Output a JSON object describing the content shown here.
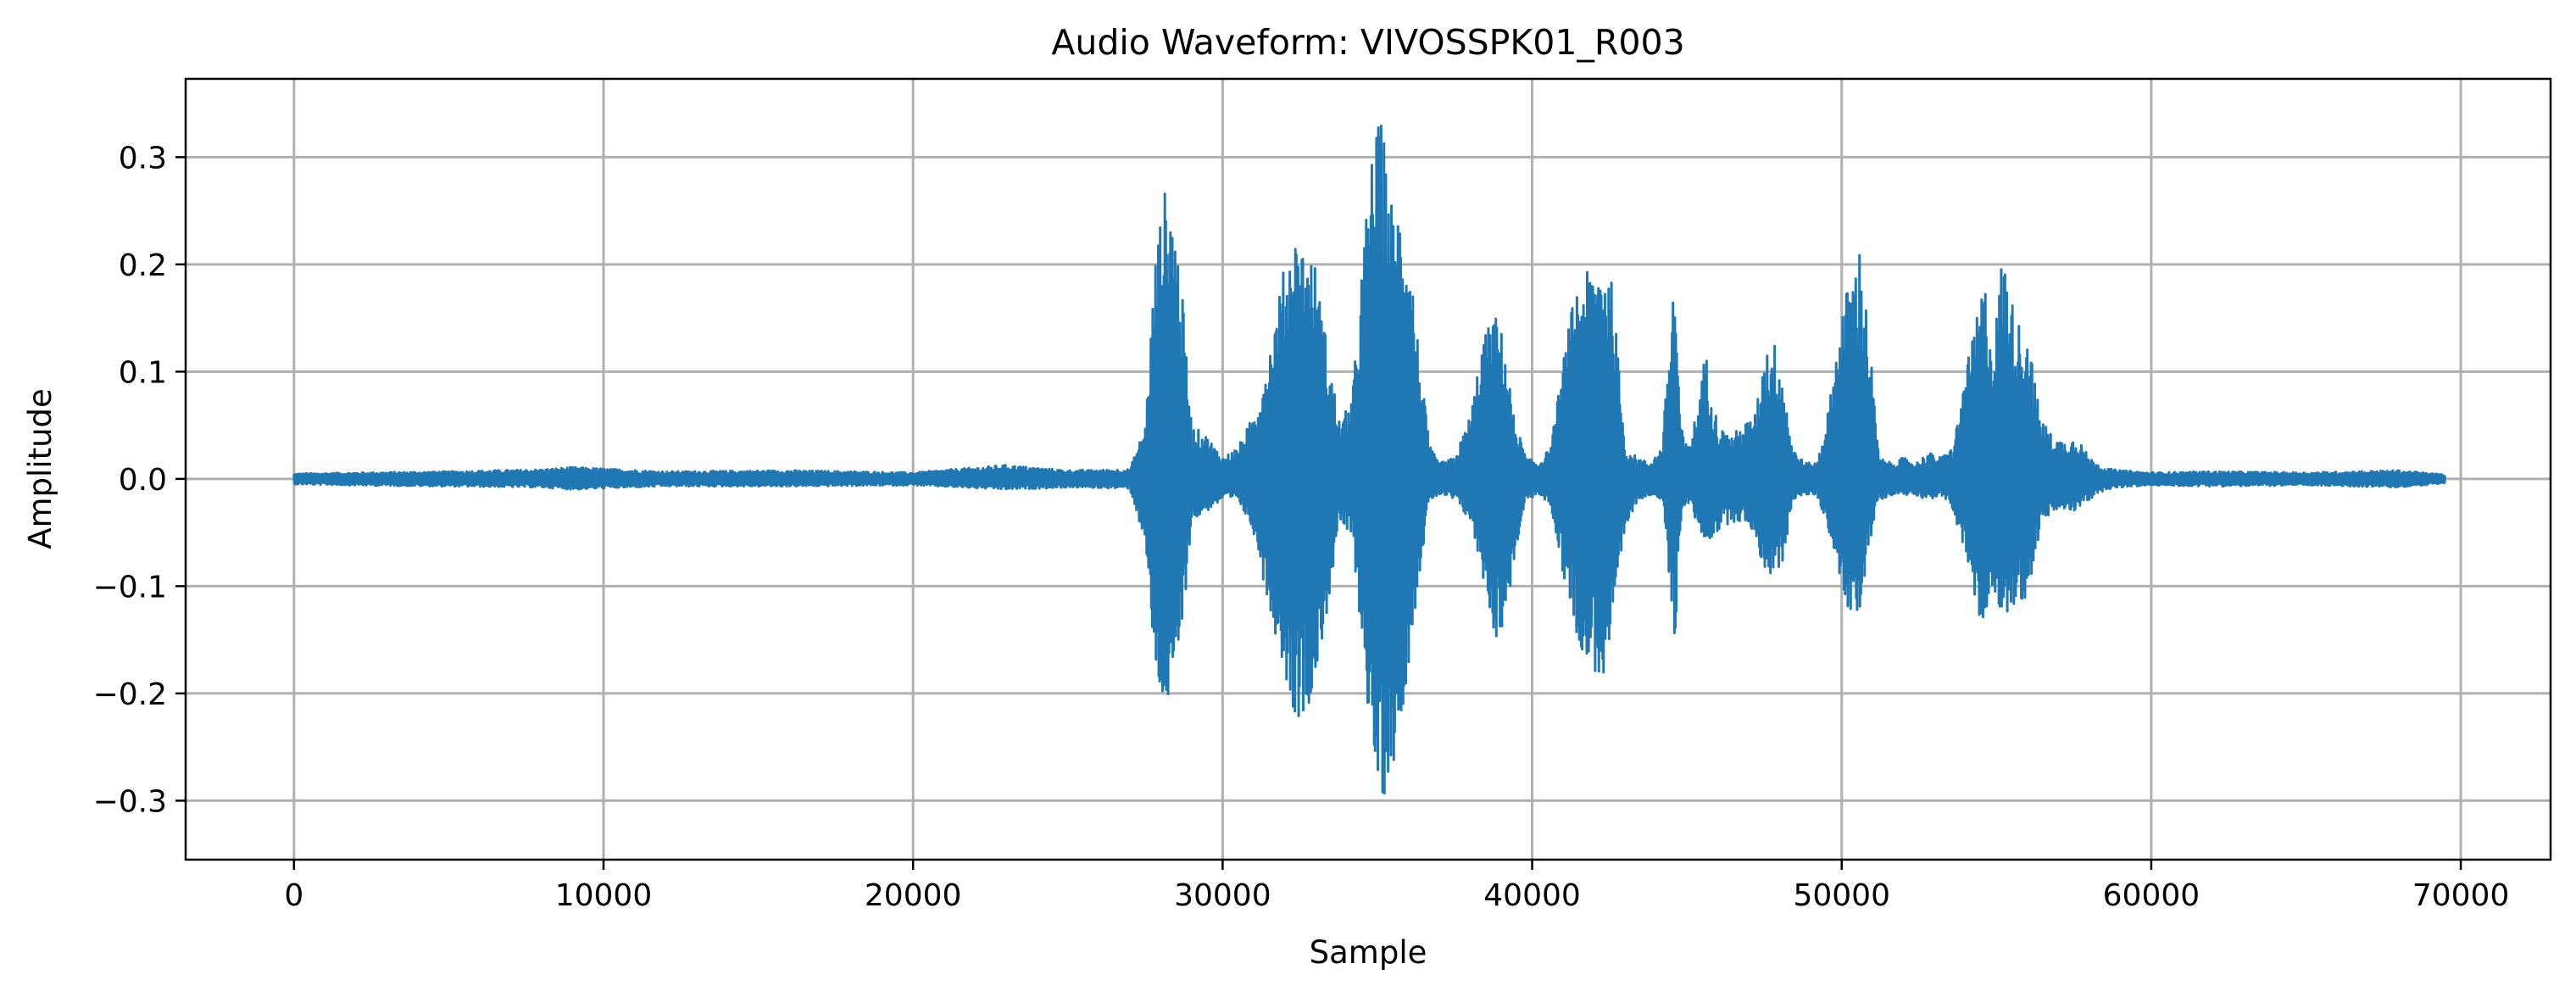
{
  "chart_data": {
    "type": "line",
    "title": "Audio Waveform: VIVOSSPK01_R003",
    "xlabel": "Sample",
    "ylabel": "Amplitude",
    "xlim": [
      -3500,
      72900
    ],
    "ylim": [
      -0.355,
      0.373
    ],
    "grid": true,
    "legend": "none",
    "line_color": "#1f77b4",
    "x_ticks": [
      {
        "value": 0,
        "label": "0"
      },
      {
        "value": 10000,
        "label": "10000"
      },
      {
        "value": 20000,
        "label": "20000"
      },
      {
        "value": 30000,
        "label": "30000"
      },
      {
        "value": 40000,
        "label": "40000"
      },
      {
        "value": 50000,
        "label": "50000"
      },
      {
        "value": 60000,
        "label": "60000"
      },
      {
        "value": 70000,
        "label": "70000"
      }
    ],
    "y_ticks": [
      {
        "value": 0.3,
        "label": "0.3"
      },
      {
        "value": 0.2,
        "label": "0.2"
      },
      {
        "value": 0.1,
        "label": "0.1"
      },
      {
        "value": 0.0,
        "label": "0.0"
      },
      {
        "value": -0.1,
        "label": "−0.1"
      },
      {
        "value": -0.2,
        "label": "−0.2"
      },
      {
        "value": -0.3,
        "label": "−0.3"
      }
    ],
    "series": [
      {
        "sample_count": 69500,
        "envelope": {
          "x": [
            0,
            2000,
            5000,
            8000,
            9000,
            12000,
            16000,
            20000,
            23000,
            25000,
            27000,
            27500,
            27800,
            28100,
            28400,
            28700,
            29000,
            29500,
            30000,
            30500,
            31000,
            31500,
            32000,
            32300,
            32600,
            33000,
            33400,
            33800,
            34200,
            34500,
            34800,
            35100,
            35300,
            35500,
            35800,
            36100,
            36400,
            36700,
            37000,
            37500,
            38000,
            38400,
            38800,
            39100,
            39400,
            39800,
            40200,
            40600,
            41000,
            41400,
            41700,
            42000,
            42300,
            42600,
            43000,
            43400,
            43800,
            44200,
            44600,
            44800,
            45000,
            45300,
            45600,
            46000,
            46400,
            46800,
            47200,
            47500,
            47800,
            48100,
            48400,
            48800,
            49200,
            49600,
            50000,
            50300,
            50600,
            50900,
            51200,
            51600,
            52000,
            52400,
            52800,
            53200,
            53600,
            54000,
            54300,
            54600,
            54900,
            55200,
            55600,
            56000,
            56400,
            56800,
            57200,
            57600,
            58000,
            58500,
            59000,
            60000,
            62000,
            65000,
            68000,
            69500
          ],
          "max": [
            0.005,
            0.006,
            0.007,
            0.009,
            0.011,
            0.007,
            0.008,
            0.006,
            0.013,
            0.008,
            0.009,
            0.05,
            0.2,
            0.27,
            0.26,
            0.17,
            0.05,
            0.04,
            0.02,
            0.03,
            0.06,
            0.12,
            0.2,
            0.23,
            0.22,
            0.2,
            0.12,
            0.05,
            0.08,
            0.2,
            0.3,
            0.34,
            0.3,
            0.25,
            0.26,
            0.2,
            0.1,
            0.03,
            0.015,
            0.02,
            0.06,
            0.13,
            0.155,
            0.13,
            0.06,
            0.02,
            0.015,
            0.03,
            0.11,
            0.18,
            0.19,
            0.2,
            0.215,
            0.18,
            0.03,
            0.02,
            0.015,
            0.03,
            0.2,
            0.05,
            0.03,
            0.06,
            0.12,
            0.05,
            0.04,
            0.05,
            0.06,
            0.12,
            0.13,
            0.1,
            0.03,
            0.015,
            0.015,
            0.07,
            0.16,
            0.19,
            0.22,
            0.13,
            0.02,
            0.015,
            0.02,
            0.015,
            0.025,
            0.02,
            0.03,
            0.1,
            0.14,
            0.19,
            0.12,
            0.22,
            0.15,
            0.14,
            0.06,
            0.04,
            0.035,
            0.04,
            0.02,
            0.01,
            0.008,
            0.006,
            0.007,
            0.006,
            0.008,
            0.004
          ],
          "min": [
            -0.005,
            -0.006,
            -0.007,
            -0.008,
            -0.01,
            -0.007,
            -0.007,
            -0.006,
            -0.01,
            -0.008,
            -0.009,
            -0.06,
            -0.18,
            -0.215,
            -0.21,
            -0.14,
            -0.04,
            -0.03,
            -0.02,
            -0.02,
            -0.05,
            -0.12,
            -0.18,
            -0.22,
            -0.225,
            -0.19,
            -0.12,
            -0.04,
            -0.06,
            -0.15,
            -0.25,
            -0.32,
            -0.28,
            -0.27,
            -0.22,
            -0.15,
            -0.08,
            -0.02,
            -0.015,
            -0.02,
            -0.04,
            -0.09,
            -0.15,
            -0.14,
            -0.08,
            -0.02,
            -0.015,
            -0.025,
            -0.09,
            -0.14,
            -0.17,
            -0.18,
            -0.19,
            -0.15,
            -0.05,
            -0.02,
            -0.015,
            -0.02,
            -0.16,
            -0.04,
            -0.02,
            -0.04,
            -0.06,
            -0.05,
            -0.04,
            -0.04,
            -0.05,
            -0.09,
            -0.09,
            -0.08,
            -0.02,
            -0.015,
            -0.015,
            -0.05,
            -0.1,
            -0.14,
            -0.12,
            -0.06,
            -0.02,
            -0.015,
            -0.015,
            -0.015,
            -0.02,
            -0.015,
            -0.03,
            -0.07,
            -0.12,
            -0.15,
            -0.1,
            -0.13,
            -0.12,
            -0.11,
            -0.05,
            -0.03,
            -0.03,
            -0.03,
            -0.02,
            -0.01,
            -0.008,
            -0.006,
            -0.007,
            -0.006,
            -0.008,
            -0.004
          ]
        }
      }
    ]
  }
}
